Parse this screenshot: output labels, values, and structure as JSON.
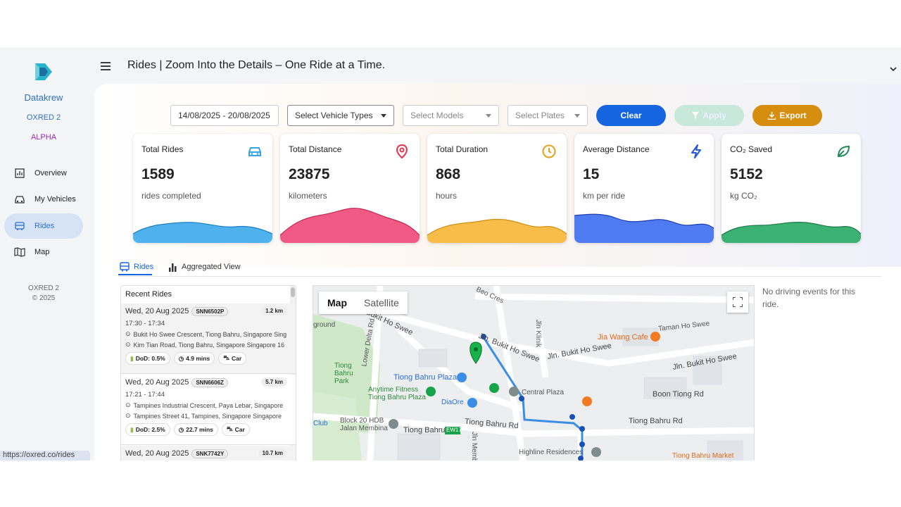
{
  "sidebar": {
    "brand": "Datakrew",
    "company": "OXRED 2",
    "tier": "ALPHA",
    "items": [
      {
        "label": "Overview",
        "icon": "chart-icon"
      },
      {
        "label": "My Vehicles",
        "icon": "car-icon"
      },
      {
        "label": "Rides",
        "icon": "bus-icon",
        "active": true
      },
      {
        "label": "Map",
        "icon": "map-icon"
      }
    ],
    "footer_company": "OXRED 2",
    "footer_copyright": "© 2025"
  },
  "header": {
    "title": "Rides | Zoom Into the Details – One Ride at a Time."
  },
  "filters": {
    "date_range": "14/08/2025 - 20/08/2025",
    "vehicle_types_placeholder": "Select Vehicle Types",
    "models_placeholder": "Select Models",
    "plates_placeholder": "Select Plates",
    "clear_label": "Clear",
    "apply_label": "Apply",
    "export_label": "Export"
  },
  "kpis": [
    {
      "title": "Total Rides",
      "value": "1589",
      "unit": "rides completed",
      "color": "#36a3e8",
      "icon": "car-icon"
    },
    {
      "title": "Total Distance",
      "value": "23875",
      "unit": "kilometers",
      "color": "#ee4a78",
      "icon": "location-pin-icon"
    },
    {
      "title": "Total Duration",
      "value": "868",
      "unit": "hours",
      "color": "#f6b73c",
      "icon": "clock-icon"
    },
    {
      "title": "Average Distance",
      "value": "15",
      "unit": "km per ride",
      "color": "#3d6ef0",
      "icon": "lightning-icon"
    },
    {
      "title": "CO₂ Saved",
      "value": "5152",
      "unit": "kg CO₂",
      "color": "#2ea66b",
      "icon": "leaf-icon"
    }
  ],
  "tabs": [
    {
      "label": "Rides",
      "icon": "bus-icon",
      "active": true
    },
    {
      "label": "Aggregated View",
      "icon": "bar-chart-icon"
    }
  ],
  "recent_rides": {
    "title": "Recent Rides",
    "rides": [
      {
        "date": "Wed, 20 Aug 2025",
        "plate": "SNN6502P",
        "distance": "1.2 km",
        "time": "17:30 - 17:34",
        "from": "Bukit Ho Swee Crescent, Tiong Bahru, Singapore Sing",
        "to": "Kim Tian Road, Tiong Bahru, Singapore Singapore 16",
        "dod": "DoD: 0.5%",
        "duration": "4.9 mins",
        "type": "Car"
      },
      {
        "date": "Wed, 20 Aug 2025",
        "plate": "SNN6606Z",
        "distance": "5.7 km",
        "time": "17:21 - 17:44",
        "from": "Tampines Industrial Crescent, Paya Lebar, Singapore",
        "to": "Tampines Street 41, Tampines, Singapore Singapore",
        "dod": "DoD: 2.5%",
        "duration": "22.7 mins",
        "type": "Car"
      },
      {
        "date": "Wed, 20 Aug 2025",
        "plate": "SNK7742Y",
        "distance": "10.7 km"
      }
    ]
  },
  "map": {
    "map_label": "Map",
    "satellite_label": "Satellite",
    "labels": [
      "Beo Cres",
      "Jln. Bukit Ho Swee",
      "Jln. Bukit Ho Swee",
      "Jln. Bukit Ho Swee",
      "Taman Ho Swee",
      "Jia Wang Cafe",
      "Jln Klinik",
      "Lower Delta Rd",
      "Tiong Bahru Park",
      "Tiong Bahru Plaza",
      "Anytime Fitness Tiong Bahru Plaza",
      "Central Plaza",
      "DiaOre",
      "Boon Tiong Rd",
      "Block 20 HDB Jalan Membina",
      "Tiong Bahru",
      "EW17",
      "Tiong Bahru Rd",
      "Tiong Bahru Rd",
      "Highline Residences",
      "Tiong Bahru Market",
      "Club",
      "Bukit Ho Swee",
      "ground",
      "Jln Membina"
    ]
  },
  "events": {
    "empty_text": "No driving events for this ride."
  },
  "status_url": "https://oxred.co/rides"
}
